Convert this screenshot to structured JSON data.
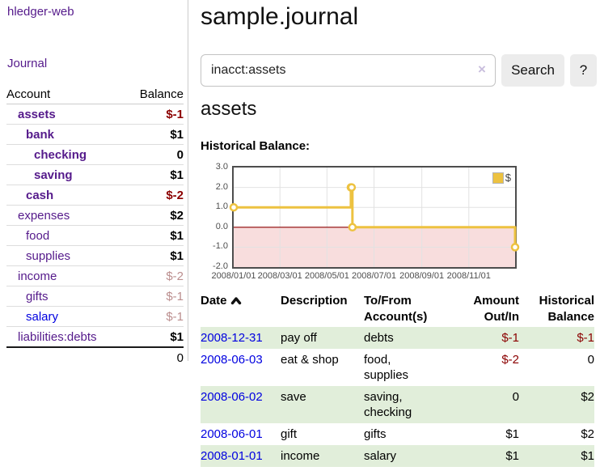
{
  "sidebar": {
    "brand": "hledger-web",
    "nav_journal": "Journal",
    "accounts_table": {
      "account_header": "Account",
      "balance_header": "Balance",
      "rows": [
        {
          "name": "assets",
          "indent": 1,
          "bold": true,
          "balance": "$-1",
          "balance_style": "neg",
          "link_style": "purple"
        },
        {
          "name": "bank",
          "indent": 2,
          "bold": true,
          "balance": "$1",
          "balance_style": "pos",
          "link_style": "purple"
        },
        {
          "name": "checking",
          "indent": 3,
          "bold": true,
          "balance": "0",
          "balance_style": "pos",
          "link_style": "purple"
        },
        {
          "name": "saving",
          "indent": 3,
          "bold": true,
          "balance": "$1",
          "balance_style": "pos",
          "link_style": "purple"
        },
        {
          "name": "cash",
          "indent": 2,
          "bold": true,
          "balance": "$-2",
          "balance_style": "neg",
          "link_style": "purple"
        },
        {
          "name": "expenses",
          "indent": 1,
          "bold": false,
          "balance": "$2",
          "balance_style": "pos",
          "link_style": "purple"
        },
        {
          "name": "food",
          "indent": 2,
          "bold": false,
          "balance": "$1",
          "balance_style": "pos",
          "link_style": "purple"
        },
        {
          "name": "supplies",
          "indent": 2,
          "bold": false,
          "balance": "$1",
          "balance_style": "pos",
          "link_style": "purple"
        },
        {
          "name": "income",
          "indent": 1,
          "bold": false,
          "balance": "$-2",
          "balance_style": "negfaint",
          "link_style": "purple"
        },
        {
          "name": "gifts",
          "indent": 2,
          "bold": false,
          "balance": "$-1",
          "balance_style": "negfaint",
          "link_style": "purple"
        },
        {
          "name": "salary",
          "indent": 2,
          "bold": false,
          "balance": "$-1",
          "balance_style": "negfaint",
          "link_style": "blue"
        },
        {
          "name": "liabilities:debts",
          "indent": 1,
          "bold": false,
          "balance": "$1",
          "balance_style": "pos",
          "link_style": "purple"
        }
      ],
      "total": "0"
    }
  },
  "header": {
    "title": "sample.journal"
  },
  "search": {
    "value": "inacct:assets",
    "clear_icon": "×",
    "button_label": "Search",
    "help_label": "?"
  },
  "account_page": {
    "heading": "assets",
    "chart_label": "Historical Balance:"
  },
  "chart_data": {
    "type": "line",
    "step": true,
    "title": "Historical Balance",
    "series": [
      {
        "name": "$",
        "color": "#edc240",
        "points": [
          [
            "2008-01-01",
            1
          ],
          [
            "2008-06-01",
            2
          ],
          [
            "2008-06-02",
            2
          ],
          [
            "2008-06-03",
            0
          ],
          [
            "2008-12-31",
            -1
          ]
        ]
      }
    ],
    "x_range": [
      "2008-01-01",
      "2008-12-31"
    ],
    "ylim": [
      -2,
      3
    ],
    "y_ticks": [
      3.0,
      2.0,
      1.0,
      0.0,
      -1.0,
      -2.0
    ],
    "y_tick_labels": [
      "3.0",
      "2.0",
      "1.0",
      "0.0",
      "-1.0",
      "-2.0"
    ],
    "x_ticks": [
      "2008/01/01",
      "2008/03/01",
      "2008/05/01",
      "2008/07/01",
      "2008/09/01",
      "2008/11/01"
    ],
    "legend": {
      "label": "$",
      "position": "top-right"
    },
    "grid": true,
    "zero_line_color": "#8b0000",
    "negative_region_fill": "#f8dddd",
    "grid_color": "#e2e2e2"
  },
  "register": {
    "headers": [
      {
        "line1": "Date",
        "line2": "",
        "align": "left",
        "sortable": true
      },
      {
        "line1": "Description",
        "line2": "",
        "align": "left"
      },
      {
        "line1": "To/From",
        "line2": "Account(s)",
        "align": "left"
      },
      {
        "line1": "Amount",
        "line2": "Out/In",
        "align": "right"
      },
      {
        "line1": "Historical",
        "line2": "Balance",
        "align": "right"
      }
    ],
    "rows": [
      {
        "date": "2008-12-31",
        "description": "pay off",
        "accounts": "debts",
        "amount": "$-1",
        "amount_style": "neg",
        "balance": "$-1",
        "balance_style": "neg",
        "shaded": true
      },
      {
        "date": "2008-06-03",
        "description": "eat & shop",
        "accounts": "food, supplies",
        "amount": "$-2",
        "amount_style": "neg",
        "balance": "0",
        "balance_style": "pos",
        "shaded": false
      },
      {
        "date": "2008-06-02",
        "description": "save",
        "accounts": "saving, checking",
        "amount": "0",
        "amount_style": "pos",
        "balance": "$2",
        "balance_style": "pos",
        "shaded": true
      },
      {
        "date": "2008-06-01",
        "description": "gift",
        "accounts": "gifts",
        "amount": "$1",
        "amount_style": "pos",
        "balance": "$2",
        "balance_style": "pos",
        "shaded": false
      },
      {
        "date": "2008-01-01",
        "description": "income",
        "accounts": "salary",
        "amount": "$1",
        "amount_style": "pos",
        "balance": "$1",
        "balance_style": "pos",
        "shaded": true
      }
    ]
  },
  "colors": {
    "link_purple": "#551a8b",
    "link_blue": "#0000e0",
    "negative": "#8b0000",
    "negative_faint": "#bb8e8e",
    "row_green": "#e1eeda",
    "chart_line": "#edc240",
    "chart_border": "#4d4d4d",
    "button_bg": "#ececec"
  }
}
